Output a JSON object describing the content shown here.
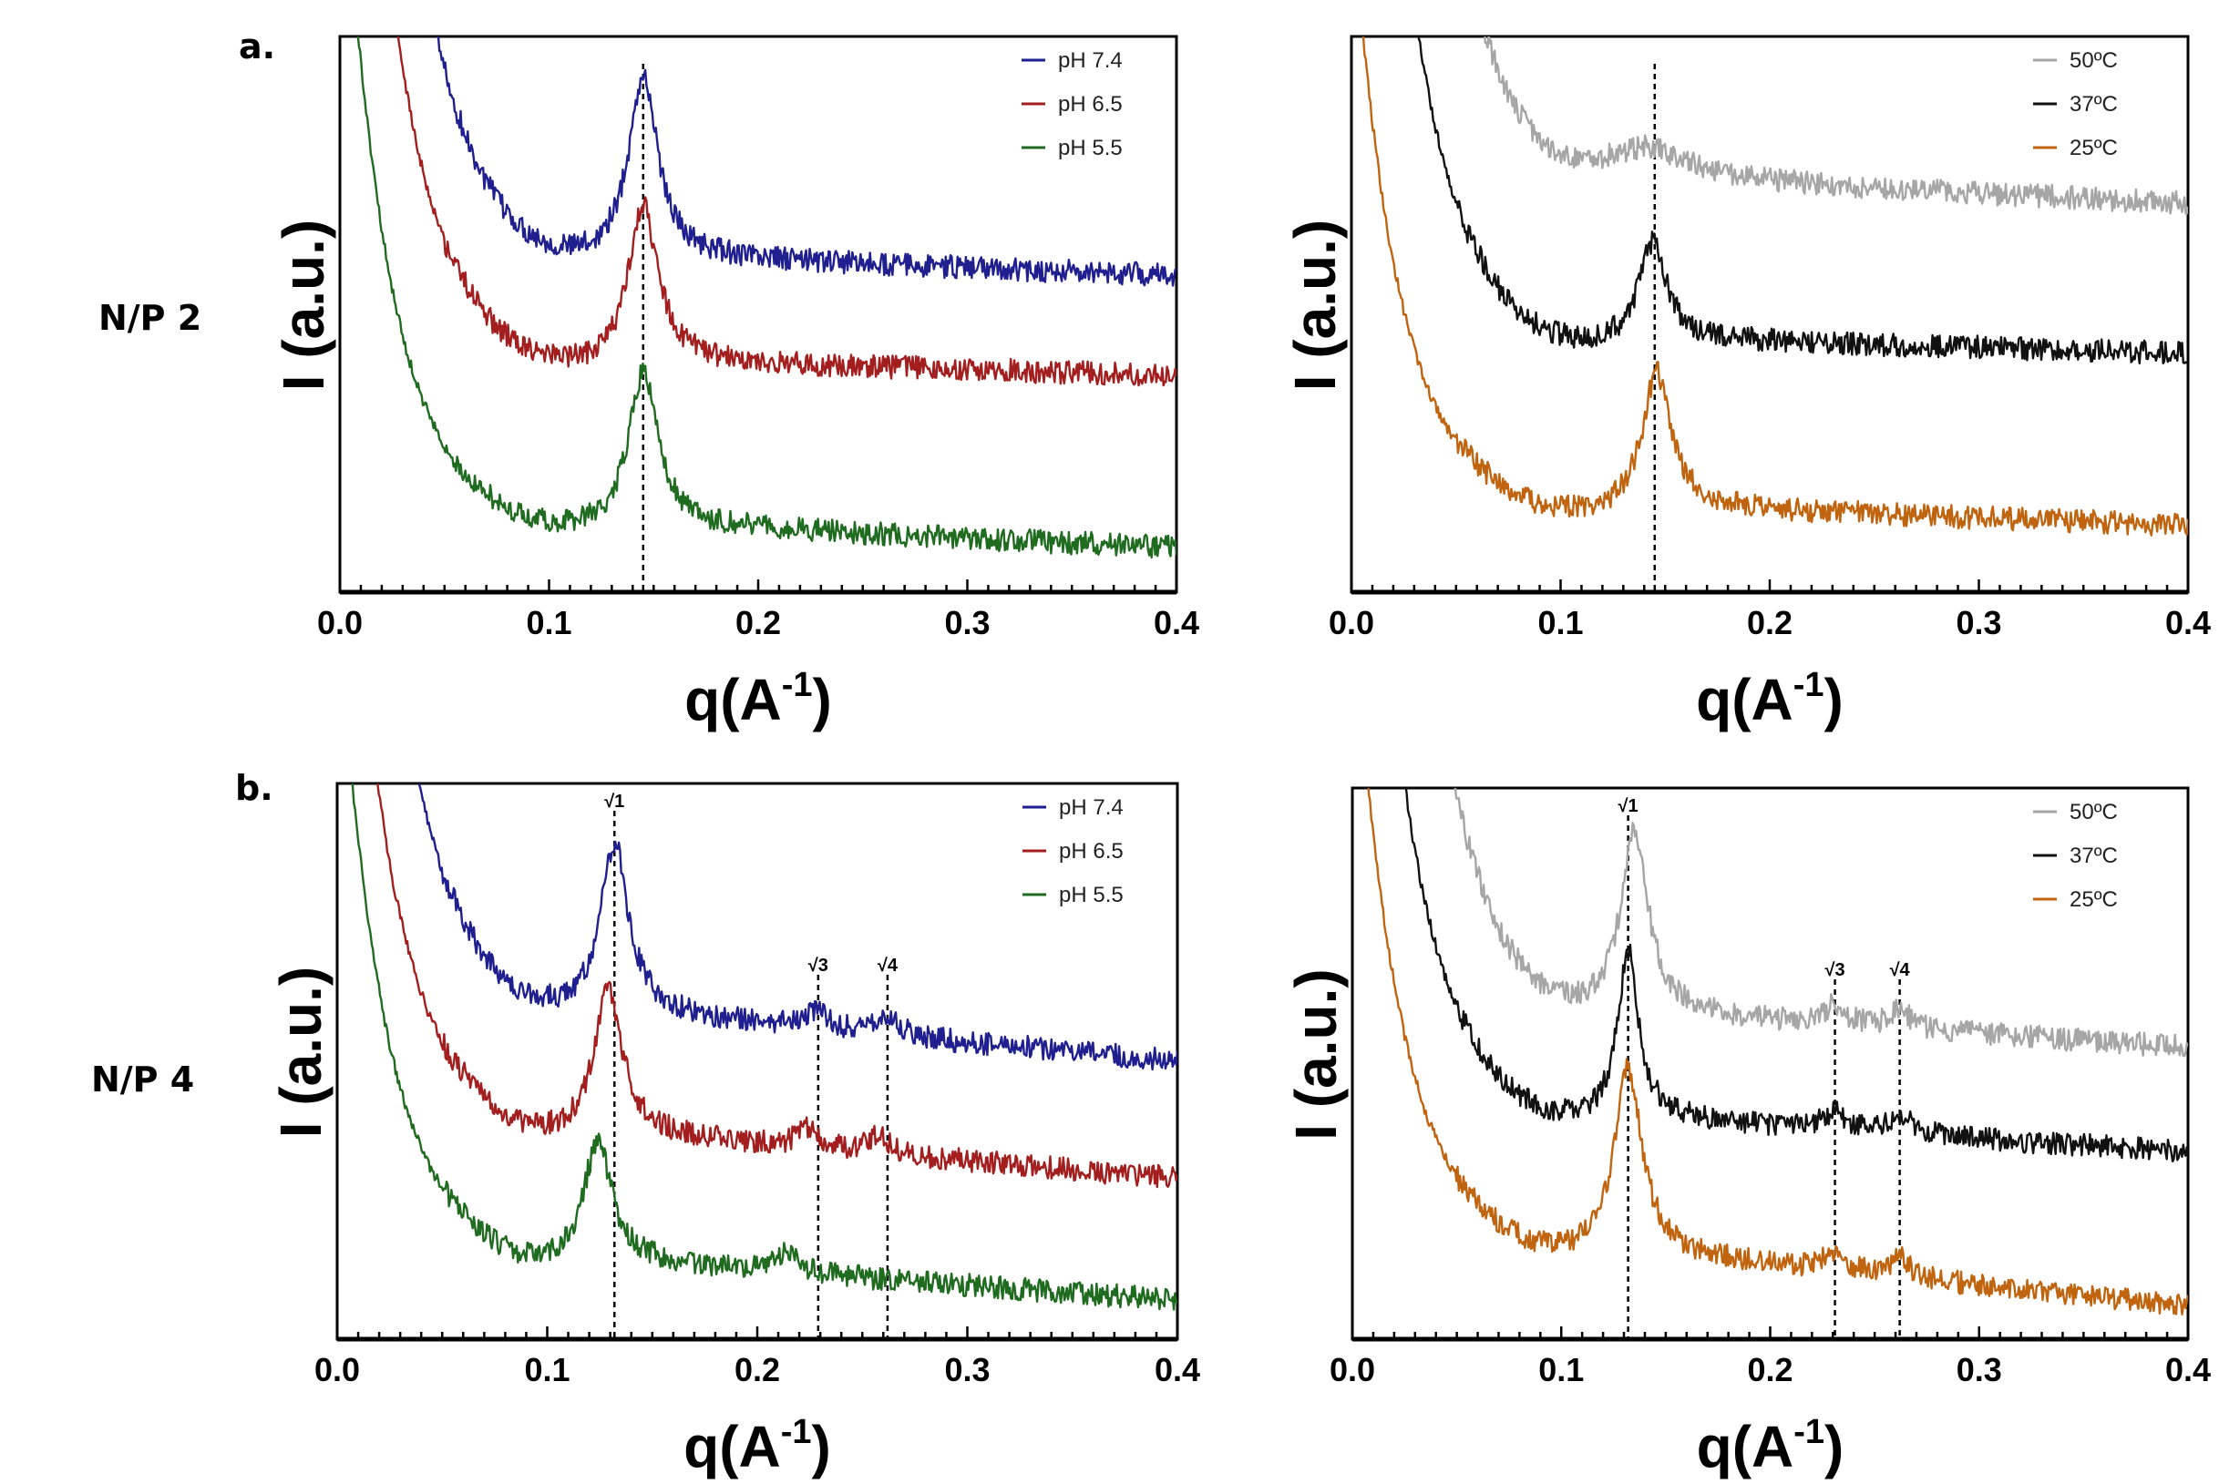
{
  "figure": {
    "row_labels": [
      "N/P 2",
      "N/P 4"
    ],
    "panel_letters": [
      "a.",
      "b."
    ]
  },
  "chart_data": [
    {
      "id": "np2-ph",
      "type": "line",
      "panel": "a.",
      "row_label": "N/P 2",
      "title": "",
      "xlabel": "q(A-1)",
      "xlabel_base": "q(A",
      "xlabel_sup": "-1",
      "xlabel_close": ")",
      "ylabel": "I (a.u.)",
      "xlim": [
        0.0,
        0.4
      ],
      "ylim": [
        0,
        10
      ],
      "x_ticks": [
        0.0,
        0.1,
        0.2,
        0.3,
        0.4
      ],
      "x_tick_labels": [
        "0.0",
        "0.1",
        "0.2",
        "0.3",
        "0.4"
      ],
      "x_minor_step": 0.01,
      "legend_position": "top-right",
      "grid": false,
      "reference_lines": [
        {
          "x": 0.145,
          "label": ""
        }
      ],
      "series": [
        {
          "name": "pH 7.4",
          "color": "#1f1f8f",
          "upturn_start": 0.032,
          "baseline_mid": 6.1,
          "baseline_end": 5.7,
          "peak_q": 0.145,
          "peak_height": 9.3,
          "peak_width": 0.0085
        },
        {
          "name": "pH 6.5",
          "color": "#a31f1f",
          "upturn_start": 0.022,
          "baseline_mid": 4.2,
          "baseline_end": 3.9,
          "peak_q": 0.145,
          "peak_height": 7.0,
          "peak_width": 0.0085
        },
        {
          "name": "pH 5.5",
          "color": "#1f6b1f",
          "upturn_start": 0.012,
          "baseline_mid": 1.3,
          "baseline_end": 0.8,
          "peak_q": 0.145,
          "peak_height": 4.0,
          "peak_width": 0.0085
        }
      ]
    },
    {
      "id": "np2-temp",
      "type": "line",
      "panel": "",
      "row_label": "N/P 2",
      "title": "",
      "xlabel": "q(A-1)",
      "xlabel_base": "q(A",
      "xlabel_sup": "-1",
      "xlabel_close": ")",
      "ylabel": "I (a.u.)",
      "xlim": [
        0.0,
        0.4
      ],
      "ylim": [
        0,
        10
      ],
      "x_ticks": [
        0.0,
        0.1,
        0.2,
        0.3,
        0.4
      ],
      "x_tick_labels": [
        "0.0",
        "0.1",
        "0.2",
        "0.3",
        "0.4"
      ],
      "x_minor_step": 0.01,
      "legend_position": "top-right",
      "grid": false,
      "reference_lines": [
        {
          "x": 0.145,
          "label": ""
        }
      ],
      "series": [
        {
          "name": "50ºC",
          "color": "#a6a6a6",
          "upturn_start": 0.04,
          "baseline_mid": 7.5,
          "baseline_end": 7.0,
          "peak_q": 0.14,
          "peak_height": 8.0,
          "peak_width": 0.03
        },
        {
          "name": "37ºC",
          "color": "#111111",
          "upturn_start": 0.025,
          "baseline_mid": 4.6,
          "baseline_end": 4.3,
          "peak_q": 0.144,
          "peak_height": 6.3,
          "peak_width": 0.008
        },
        {
          "name": "25ºC",
          "color": "#c0640f",
          "upturn_start": 0.008,
          "baseline_mid": 1.6,
          "baseline_end": 1.2,
          "peak_q": 0.146,
          "peak_height": 4.0,
          "peak_width": 0.0085
        }
      ]
    },
    {
      "id": "np4-ph",
      "type": "line",
      "panel": "b.",
      "row_label": "N/P 4",
      "title": "",
      "xlabel": "q(A-1)",
      "xlabel_base": "q(A",
      "xlabel_sup": "-1",
      "xlabel_close": ")",
      "ylabel": "I (a.u.)",
      "xlim": [
        0.0,
        0.4
      ],
      "ylim": [
        0,
        10
      ],
      "x_ticks": [
        0.0,
        0.1,
        0.2,
        0.3,
        0.4
      ],
      "x_tick_labels": [
        "0.0",
        "0.1",
        "0.2",
        "0.3",
        "0.4"
      ],
      "x_minor_step": 0.01,
      "legend_position": "top-right",
      "grid": false,
      "reference_lines": [
        {
          "x": 0.132,
          "label": "√1"
        },
        {
          "x": 0.229,
          "label": "√3"
        },
        {
          "x": 0.262,
          "label": "√4"
        }
      ],
      "series": [
        {
          "name": "pH 7.4",
          "color": "#1f1f8f",
          "upturn_start": 0.025,
          "baseline_mid": 6.0,
          "baseline_end": 5.0,
          "peak_q": 0.132,
          "peak_height": 9.0,
          "peak_width": 0.008,
          "minor_peaks": [
            0.229,
            0.262
          ]
        },
        {
          "name": "pH 6.5",
          "color": "#a31f1f",
          "upturn_start": 0.015,
          "baseline_mid": 3.8,
          "baseline_end": 2.9,
          "peak_q": 0.129,
          "peak_height": 6.4,
          "peak_width": 0.008,
          "minor_peaks": [
            0.224,
            0.258
          ]
        },
        {
          "name": "pH 5.5",
          "color": "#1f6b1f",
          "upturn_start": 0.01,
          "baseline_mid": 1.5,
          "baseline_end": 0.7,
          "peak_q": 0.124,
          "peak_height": 3.6,
          "peak_width": 0.008,
          "minor_peaks": [
            0.215
          ]
        }
      ]
    },
    {
      "id": "np4-temp",
      "type": "line",
      "panel": "",
      "row_label": "N/P 4",
      "title": "",
      "xlabel": "q(A-1)",
      "xlabel_base": "q(A",
      "xlabel_sup": "-1",
      "xlabel_close": ")",
      "ylabel": "I (a.u.)",
      "xlim": [
        0.0,
        0.4
      ],
      "ylim": [
        0,
        10
      ],
      "x_ticks": [
        0.0,
        0.1,
        0.2,
        0.3,
        0.4
      ],
      "x_tick_labels": [
        "0.0",
        "0.1",
        "0.2",
        "0.3",
        "0.4"
      ],
      "x_minor_step": 0.01,
      "legend_position": "top-right",
      "grid": false,
      "reference_lines": [
        {
          "x": 0.132,
          "label": "√1"
        },
        {
          "x": 0.231,
          "label": "√3"
        },
        {
          "x": 0.262,
          "label": "√4"
        }
      ],
      "series": [
        {
          "name": "50ºC",
          "color": "#a6a6a6",
          "upturn_start": 0.035,
          "baseline_mid": 6.0,
          "baseline_end": 5.3,
          "peak_q": 0.135,
          "peak_height": 9.2,
          "peak_width": 0.008,
          "minor_peaks": [
            0.231,
            0.262
          ]
        },
        {
          "name": "37ºC",
          "color": "#111111",
          "upturn_start": 0.02,
          "baseline_mid": 4.1,
          "baseline_end": 3.4,
          "peak_q": 0.132,
          "peak_height": 7.1,
          "peak_width": 0.006,
          "minor_peaks": [
            0.231,
            0.262
          ]
        },
        {
          "name": "25ºC",
          "color": "#c0640f",
          "upturn_start": 0.01,
          "baseline_mid": 1.7,
          "baseline_end": 0.6,
          "peak_q": 0.132,
          "peak_height": 5.0,
          "peak_width": 0.008,
          "minor_peaks": [
            0.231,
            0.262
          ]
        }
      ]
    }
  ]
}
